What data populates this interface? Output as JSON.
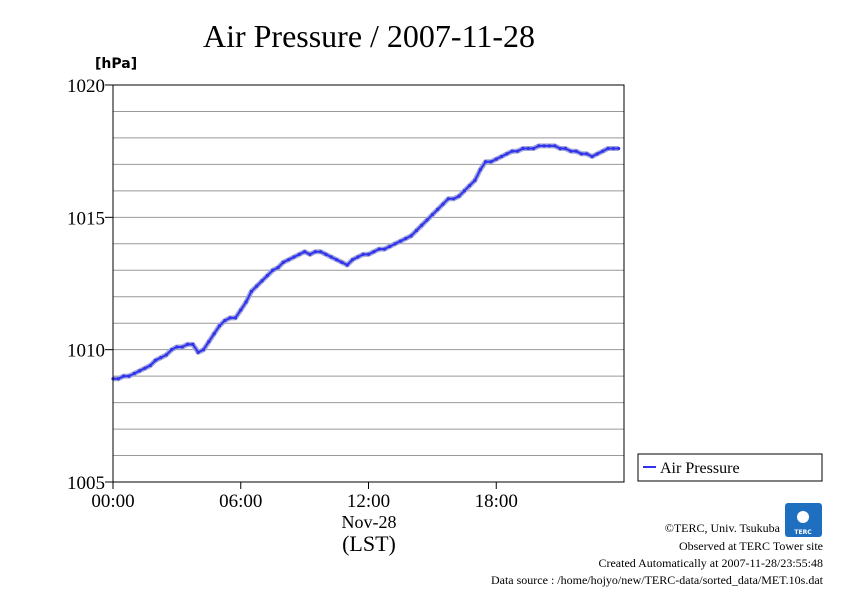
{
  "chart_data": {
    "type": "line",
    "title": "Air Pressure / 2007-11-28",
    "unit_label": "[hPa]",
    "ylim": [
      1005,
      1020
    ],
    "y_ticks": [
      "1005",
      "1010",
      "1015",
      "1020"
    ],
    "y_minor_step": 1,
    "xlim": [
      0,
      24
    ],
    "x_ticks": [
      {
        "hour": 0,
        "label": "00:00"
      },
      {
        "hour": 6,
        "label": "06:00"
      },
      {
        "hour": 12,
        "label": "12:00"
      },
      {
        "hour": 18,
        "label": "18:00"
      }
    ],
    "x_date_label": "Nov-28",
    "x_axis_label": "(LST)",
    "grid": true,
    "legend_position": "right",
    "series": [
      {
        "name": "Air Pressure",
        "color": "#3333ee",
        "x": [
          0.0,
          0.25,
          0.5,
          0.75,
          1.0,
          1.25,
          1.5,
          1.75,
          2.0,
          2.25,
          2.5,
          2.75,
          3.0,
          3.25,
          3.5,
          3.75,
          4.0,
          4.25,
          4.5,
          4.75,
          5.0,
          5.25,
          5.5,
          5.75,
          6.0,
          6.25,
          6.5,
          6.75,
          7.0,
          7.25,
          7.5,
          7.75,
          8.0,
          8.25,
          8.5,
          8.75,
          9.0,
          9.25,
          9.5,
          9.75,
          10.0,
          10.25,
          10.5,
          10.75,
          11.0,
          11.25,
          11.5,
          11.75,
          12.0,
          12.25,
          12.5,
          12.75,
          13.0,
          13.25,
          13.5,
          13.75,
          14.0,
          14.25,
          14.5,
          14.75,
          15.0,
          15.25,
          15.5,
          15.75,
          16.0,
          16.25,
          16.5,
          16.75,
          17.0,
          17.25,
          17.5,
          17.75,
          18.0,
          18.25,
          18.5,
          18.75,
          19.0,
          19.25,
          19.5,
          19.75,
          20.0,
          20.25,
          20.5,
          20.75,
          21.0,
          21.25,
          21.5,
          21.75,
          22.0,
          22.25,
          22.5,
          22.75,
          23.0,
          23.25,
          23.5,
          23.75
        ],
        "values": [
          1008.9,
          1008.9,
          1009.0,
          1009.0,
          1009.1,
          1009.2,
          1009.3,
          1009.4,
          1009.6,
          1009.7,
          1009.8,
          1010.0,
          1010.1,
          1010.1,
          1010.2,
          1010.2,
          1009.9,
          1010.0,
          1010.3,
          1010.6,
          1010.9,
          1011.1,
          1011.2,
          1011.2,
          1011.5,
          1011.8,
          1012.2,
          1012.4,
          1012.6,
          1012.8,
          1013.0,
          1013.1,
          1013.3,
          1013.4,
          1013.5,
          1013.6,
          1013.7,
          1013.6,
          1013.7,
          1013.7,
          1013.6,
          1013.5,
          1013.4,
          1013.3,
          1013.2,
          1013.4,
          1013.5,
          1013.6,
          1013.6,
          1013.7,
          1013.8,
          1013.8,
          1013.9,
          1014.0,
          1014.1,
          1014.2,
          1014.3,
          1014.5,
          1014.7,
          1014.9,
          1015.1,
          1015.3,
          1015.5,
          1015.7,
          1015.7,
          1015.8,
          1016.0,
          1016.2,
          1016.4,
          1016.8,
          1017.1,
          1017.1,
          1017.2,
          1017.3,
          1017.4,
          1017.5,
          1017.5,
          1017.6,
          1017.6,
          1017.6,
          1017.7,
          1017.7,
          1017.7,
          1017.7,
          1017.6,
          1017.6,
          1017.5,
          1017.5,
          1017.4,
          1017.4,
          1017.3,
          1017.4,
          1017.5,
          1017.6,
          1017.6,
          1017.6
        ]
      }
    ]
  },
  "footer": {
    "copyright": "©TERC, Univ. Tsukuba",
    "observed": "Observed at TERC Tower site",
    "created": "Created Automatically at 2007-11-28/23:55:48",
    "source": "Data source : /home/hojyo/new/TERC-data/sorted_data/MET.10s.dat",
    "logo_text": "TERC",
    "logo_color": "#1f6fc0"
  }
}
